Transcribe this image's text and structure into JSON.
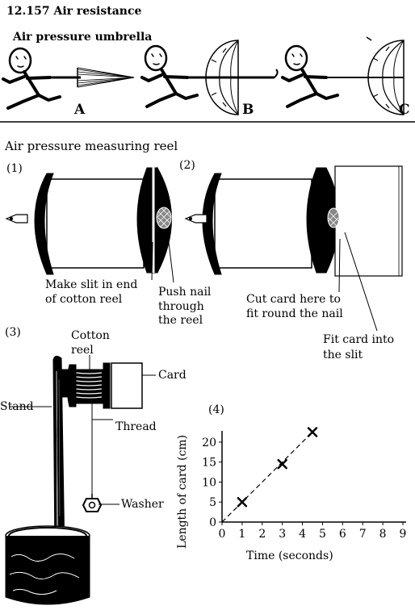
{
  "header": {
    "title": "12.157 Air resistance"
  },
  "umbrella_section": {
    "title": "Air pressure umbrella",
    "panels": [
      "A",
      "B",
      "C"
    ]
  },
  "reel_section": {
    "title": "Air pressure measuring reel",
    "step1": {
      "number": "(1)",
      "labels": {
        "slit_line1": "Make slit in end",
        "slit_line2": "of cotton reel",
        "nail_line1": "Push nail",
        "nail_line2": "through",
        "nail_line3": "the reel"
      }
    },
    "step2": {
      "number": "(2)",
      "labels": {
        "cut_line1": "Cut card here to",
        "cut_line2": "fit round the nail",
        "fit_line1": "Fit card into",
        "fit_line2": "the slit"
      }
    },
    "step3": {
      "number": "(3)",
      "labels": {
        "cotton_line1": "Cotton",
        "cotton_line2": "reel",
        "card": "Card",
        "stand": "Stand",
        "thread": "Thread",
        "washer": "Washer"
      }
    }
  },
  "chart_data": {
    "type": "scatter",
    "panel_label": "(4)",
    "xlabel": "Time (seconds)",
    "ylabel": "Length of card (cm)",
    "x_ticks": [
      0,
      1,
      2,
      3,
      4,
      5,
      6,
      7,
      8,
      9
    ],
    "y_ticks": [
      0,
      5,
      10,
      15,
      20
    ],
    "xlim": [
      0,
      9
    ],
    "ylim": [
      0,
      22
    ],
    "points": [
      {
        "x": 1,
        "y": 5
      },
      {
        "x": 3,
        "y": 14.5
      },
      {
        "x": 4.5,
        "y": 22.5
      }
    ],
    "trend_line": {
      "x1": 0,
      "y1": 0,
      "x2": 4.5,
      "y2": 22.5,
      "style": "dashed"
    },
    "marker": "x",
    "grid": false
  }
}
